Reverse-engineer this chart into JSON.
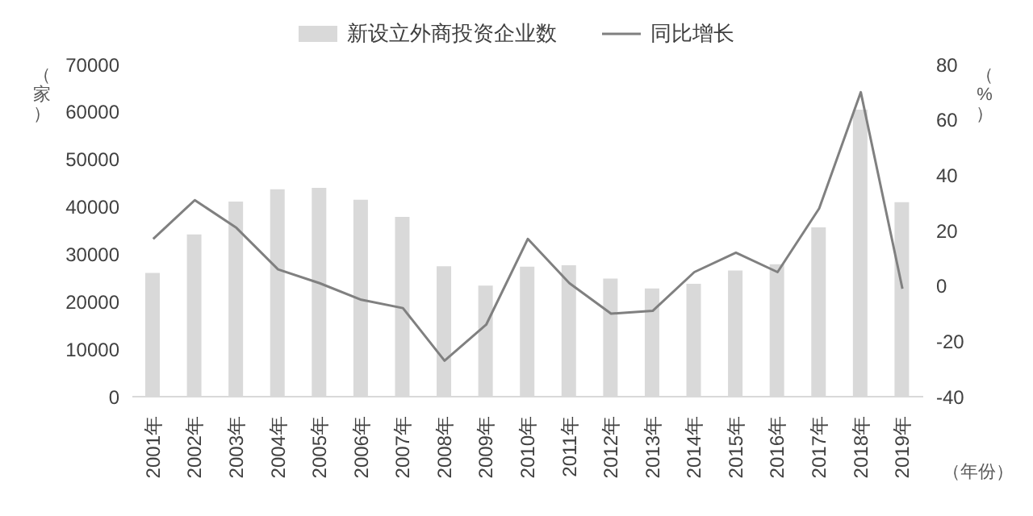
{
  "chart_data": {
    "type": "bar",
    "ylabel": "（家）",
    "y2label": "（%）",
    "xlabel": "（年份）",
    "categories": [
      "2001年",
      "2002年",
      "2003年",
      "2004年",
      "2005年",
      "2006年",
      "2007年",
      "2008年",
      "2009年",
      "2010年",
      "2011年",
      "2012年",
      "2013年",
      "2014年",
      "2015年",
      "2016年",
      "2017年",
      "2018年",
      "2019年"
    ],
    "series": [
      {
        "name": "新设立外商投资企业数",
        "color": "#d9d9d9",
        "values": [
          26100,
          34200,
          41100,
          43700,
          44000,
          41500,
          37900,
          27500,
          23400,
          27400,
          27700,
          24900,
          22800,
          23800,
          26600,
          27900,
          35700,
          60500,
          41000
        ]
      },
      {
        "name": "同比增长",
        "type": "line",
        "axis": "y2",
        "color": "#808080",
        "values": [
          17,
          31,
          21,
          6,
          1,
          -5,
          -8,
          -27,
          -14,
          17,
          1,
          -10,
          -9,
          5,
          12,
          5,
          28,
          70,
          -1
        ]
      }
    ],
    "ylim": [
      0,
      70000
    ],
    "yticks": [
      0,
      10000,
      20000,
      30000,
      40000,
      50000,
      60000,
      70000
    ],
    "y2lim": [
      -40,
      80
    ],
    "y2ticks": [
      -40,
      -20,
      0,
      20,
      40,
      60,
      80
    ],
    "grid": false,
    "legend": "top",
    "marker": "none"
  }
}
